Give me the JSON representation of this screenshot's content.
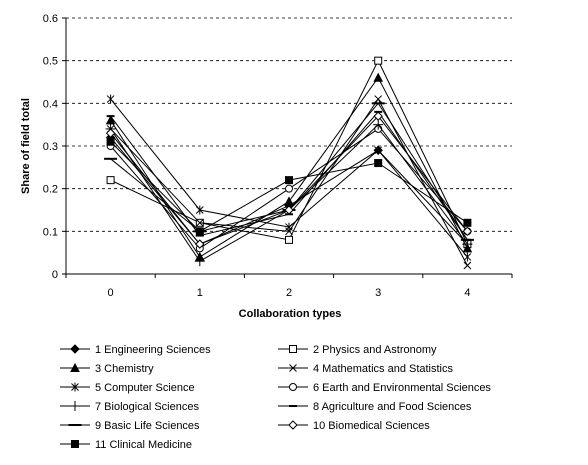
{
  "chart_data": {
    "type": "line",
    "title": "",
    "xlabel": "Collaboration types",
    "ylabel": "Share of field total",
    "x": [
      0,
      1,
      2,
      3,
      4
    ],
    "x_tick_labels": [
      "0",
      "1",
      "2",
      "3",
      "4"
    ],
    "ylim": [
      0,
      0.6
    ],
    "y_ticks": [
      0,
      0.1,
      0.2,
      0.3,
      0.4,
      0.5,
      0.6
    ],
    "y_tick_labels": [
      "0",
      "0.1",
      "0.2",
      "0.3",
      "0.4",
      "0.5",
      "0.6"
    ],
    "grid": "horizontal dashed",
    "legend_position": "bottom",
    "line_color": "#000000",
    "series": [
      {
        "name": "1 Engineering Sciences",
        "marker": "diamond-filled",
        "values": [
          0.32,
          0.07,
          0.16,
          0.29,
          0.07
        ]
      },
      {
        "name": "2 Physics and Astronomy",
        "marker": "square-open",
        "values": [
          0.22,
          0.12,
          0.08,
          0.5,
          0.07
        ]
      },
      {
        "name": "3 Chemistry",
        "marker": "triangle-filled",
        "values": [
          0.36,
          0.04,
          0.17,
          0.46,
          0.06
        ]
      },
      {
        "name": "4 Mathematics and Statistics",
        "marker": "x",
        "values": [
          0.34,
          0.12,
          0.1,
          0.41,
          0.02
        ]
      },
      {
        "name": "5 Computer Science",
        "marker": "star",
        "values": [
          0.41,
          0.15,
          0.11,
          0.29,
          0.04
        ]
      },
      {
        "name": "6 Earth and Environmental Sciences",
        "marker": "circle-open",
        "values": [
          0.3,
          0.06,
          0.2,
          0.34,
          0.1
        ]
      },
      {
        "name": "7 Biological Sciences",
        "marker": "plus",
        "values": [
          0.34,
          0.03,
          0.15,
          0.35,
          0.07
        ]
      },
      {
        "name": "8 Agriculture and Food Sciences",
        "marker": "dash",
        "values": [
          0.37,
          0.09,
          0.14,
          0.38,
          0.08
        ]
      },
      {
        "name": "9 Basic Life Sciences",
        "marker": "long-dash",
        "values": [
          0.27,
          0.1,
          0.15,
          0.4,
          0.08
        ]
      },
      {
        "name": "10 Biomedical Sciences",
        "marker": "diamond-open",
        "values": [
          0.33,
          0.07,
          0.15,
          0.37,
          0.1
        ]
      },
      {
        "name": "11 Clinical Medicine",
        "marker": "square-filled",
        "values": [
          0.31,
          0.1,
          0.22,
          0.26,
          0.12
        ]
      }
    ]
  }
}
